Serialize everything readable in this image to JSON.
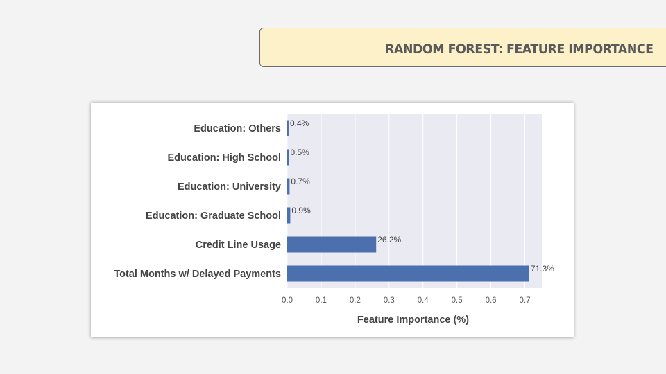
{
  "slide": {
    "title": "Random Forest: Feature Importance"
  },
  "colors": {
    "bar": "#4c6fad",
    "plot_background": "#eaeaf2",
    "grid": "#ffffff",
    "banner_background": "#fdf1c9"
  },
  "chart_data": {
    "type": "bar",
    "orientation": "horizontal",
    "categories": [
      "Education: Others",
      "Education: High School",
      "Education: University",
      "Education: Graduate School",
      "Credit Line Usage",
      "Total Months w/ Delayed Payments"
    ],
    "values": [
      0.004,
      0.005,
      0.007,
      0.009,
      0.262,
      0.713
    ],
    "data_labels": [
      "0.4%",
      "0.5%",
      "0.7%",
      "0.9%",
      "26.2%",
      "71.3%"
    ],
    "xlabel": "Feature Importance (%)",
    "ylabel": "",
    "xlim": [
      0,
      0.75
    ],
    "xticks": [
      0.0,
      0.1,
      0.2,
      0.3,
      0.4,
      0.5,
      0.6,
      0.7
    ],
    "xtick_labels": [
      "0.0",
      "0.1",
      "0.2",
      "0.3",
      "0.4",
      "0.5",
      "0.6",
      "0.7"
    ],
    "grid": true,
    "legend": "none"
  }
}
